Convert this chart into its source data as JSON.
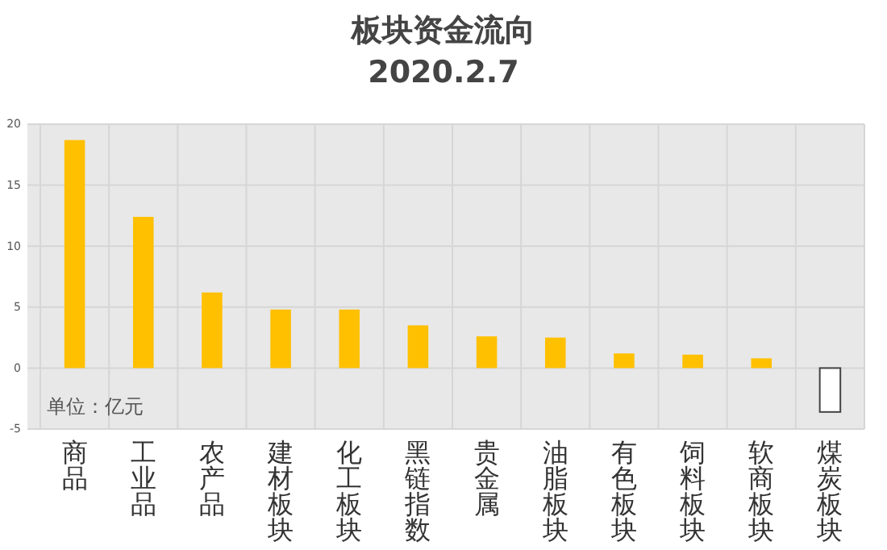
{
  "chart_data": {
    "type": "bar",
    "title": "板块资金流向",
    "subtitle": "2020.2.7",
    "categories": [
      "商品",
      "工业品",
      "农产品",
      "建材板块",
      "化工板块",
      "黑链指数",
      "贵金属",
      "油脂板块",
      "有色板块",
      "饲料板块",
      "软商板块",
      "煤炭板块"
    ],
    "values": [
      18.7,
      12.4,
      6.2,
      4.8,
      4.8,
      3.5,
      2.6,
      2.5,
      1.2,
      1.1,
      0.8,
      -3.6
    ],
    "colors": [
      "#ffc000",
      "#ffc000",
      "#ffc000",
      "#ffc000",
      "#ffc000",
      "#ffc000",
      "#ffc000",
      "#ffc000",
      "#ffc000",
      "#ffc000",
      "#ffc000",
      "#ffffff"
    ],
    "ylim": [
      -5,
      20
    ],
    "yticks": [
      -5,
      0,
      5,
      10,
      15,
      20
    ],
    "grid": true,
    "annotations": [
      "单位：亿元"
    ]
  }
}
